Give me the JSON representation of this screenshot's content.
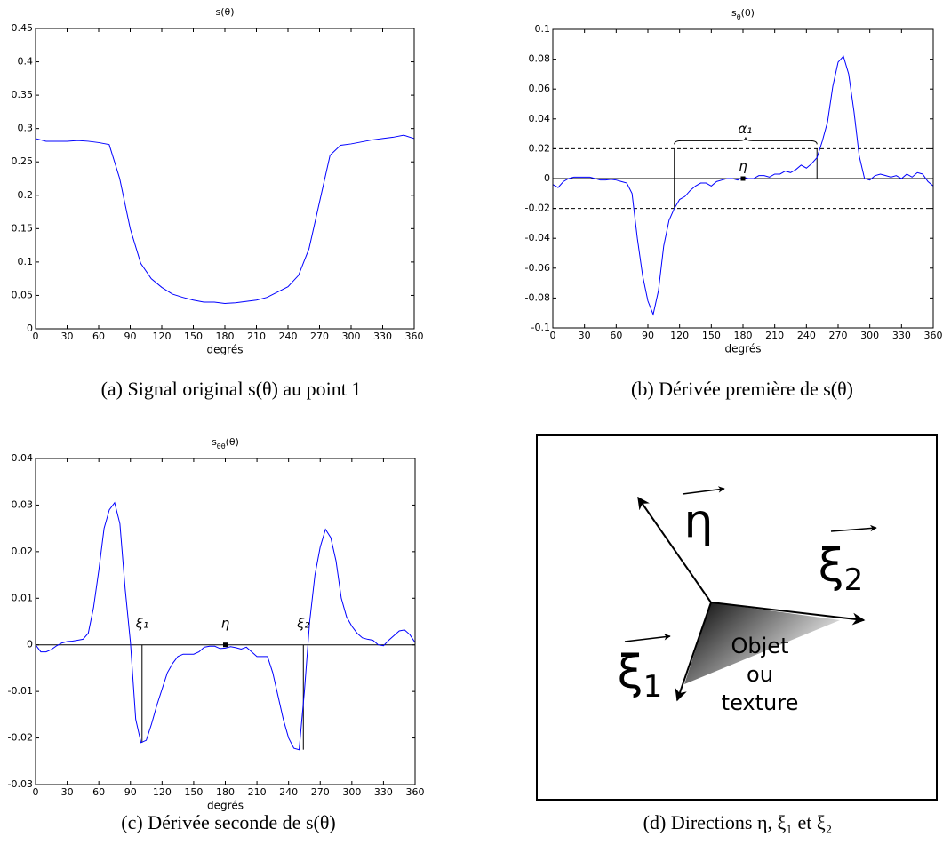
{
  "chart_data": [
    {
      "type": "line",
      "title": "s(θ)",
      "xlabel": "degrés",
      "caption": "(a) Signal original s(θ) au point 1",
      "color": "#0000ff",
      "x": [
        0,
        10,
        20,
        30,
        40,
        50,
        60,
        70,
        80,
        90,
        100,
        110,
        120,
        130,
        140,
        150,
        160,
        170,
        180,
        190,
        200,
        210,
        220,
        230,
        240,
        250,
        260,
        270,
        280,
        290,
        300,
        310,
        320,
        330,
        340,
        350,
        360
      ],
      "values": [
        0.285,
        0.281,
        0.281,
        0.281,
        0.282,
        0.281,
        0.279,
        0.276,
        0.225,
        0.15,
        0.098,
        0.075,
        0.062,
        0.052,
        0.047,
        0.043,
        0.04,
        0.04,
        0.038,
        0.039,
        0.041,
        0.043,
        0.047,
        0.055,
        0.063,
        0.08,
        0.12,
        0.19,
        0.26,
        0.275,
        0.277,
        0.28,
        0.283,
        0.285,
        0.287,
        0.29,
        0.285
      ],
      "xlim": [
        0,
        360
      ],
      "xticks": [
        0,
        30,
        60,
        90,
        120,
        150,
        180,
        210,
        240,
        270,
        300,
        330,
        360
      ],
      "ylim": [
        0,
        0.45
      ],
      "yticks": [
        0,
        0.05,
        0.1,
        0.15,
        0.2,
        0.25,
        0.3,
        0.35,
        0.4,
        0.45
      ]
    },
    {
      "type": "line",
      "title": [
        "s",
        "θ",
        "(θ)"
      ],
      "xlabel": "degrés",
      "caption": "(b) Dérivée première de s(θ)",
      "color": "#0000ff",
      "x": [
        0,
        5,
        10,
        15,
        20,
        25,
        30,
        35,
        40,
        45,
        50,
        55,
        60,
        65,
        70,
        75,
        80,
        85,
        90,
        95,
        100,
        105,
        110,
        115,
        120,
        125,
        130,
        135,
        140,
        145,
        150,
        155,
        160,
        165,
        170,
        175,
        180,
        185,
        190,
        195,
        200,
        205,
        210,
        215,
        220,
        225,
        230,
        235,
        240,
        245,
        250,
        255,
        260,
        265,
        270,
        275,
        280,
        285,
        290,
        295,
        300,
        305,
        310,
        315,
        320,
        325,
        330,
        335,
        340,
        345,
        350,
        355,
        360
      ],
      "values": [
        -0.004,
        -0.006,
        -0.002,
        0,
        0.001,
        0.001,
        0.001,
        0.001,
        0,
        -0.001,
        -0.001,
        -0.0005,
        -0.001,
        -0.002,
        -0.003,
        -0.01,
        -0.04,
        -0.065,
        -0.082,
        -0.091,
        -0.075,
        -0.045,
        -0.028,
        -0.02,
        -0.014,
        -0.012,
        -0.008,
        -0.005,
        -0.003,
        -0.003,
        -0.005,
        -0.002,
        -0.001,
        0,
        0,
        -0.001,
        0.001,
        0,
        0,
        0.002,
        0.002,
        0.001,
        0.003,
        0.003,
        0.005,
        0.004,
        0.006,
        0.009,
        0.007,
        0.01,
        0.014,
        0.025,
        0.038,
        0.062,
        0.078,
        0.082,
        0.07,
        0.045,
        0.015,
        0,
        -0.001,
        0.002,
        0.003,
        0.002,
        0.001,
        0.002,
        0,
        0.003,
        0.001,
        0.004,
        0.003,
        -0.002,
        -0.005
      ],
      "xlim": [
        0,
        360
      ],
      "xticks": [
        0,
        30,
        60,
        90,
        120,
        150,
        180,
        210,
        240,
        270,
        300,
        330,
        360
      ],
      "ylim": [
        -0.1,
        0.1
      ],
      "yticks": [
        -0.1,
        -0.08,
        -0.06,
        -0.04,
        -0.02,
        0,
        0.02,
        0.04,
        0.06,
        0.08,
        0.1
      ],
      "lines": [
        {
          "x": [
            0,
            360
          ],
          "y": [
            0.02,
            0.02
          ],
          "dashed": true
        },
        {
          "x": [
            0,
            360
          ],
          "y": [
            -0.02,
            -0.02
          ],
          "dashed": true
        },
        {
          "x": [
            0,
            360
          ],
          "y": [
            0,
            0
          ]
        },
        {
          "x": [
            115,
            115
          ],
          "y": [
            -0.02,
            0.02
          ]
        },
        {
          "x": [
            250,
            250
          ],
          "y": [
            0,
            0.02
          ]
        }
      ],
      "brace": {
        "x": [
          115,
          250
        ],
        "y": 0.023
      },
      "markers": [
        {
          "x": 180,
          "y": 0
        }
      ],
      "annotations": [
        {
          "text": "α₁",
          "x": 182,
          "y": 0.033
        },
        {
          "text": "η",
          "x": 180,
          "y": 0.008
        }
      ]
    },
    {
      "type": "line",
      "title": [
        "s",
        "θθ",
        "(θ)"
      ],
      "xlabel": "degrés",
      "caption": "(c) Dérivée seconde de s(θ)",
      "color": "#0000ff",
      "x": [
        0,
        5,
        10,
        15,
        20,
        25,
        30,
        35,
        40,
        45,
        50,
        55,
        60,
        65,
        70,
        75,
        80,
        85,
        90,
        95,
        100,
        105,
        110,
        115,
        120,
        125,
        130,
        135,
        140,
        145,
        150,
        155,
        160,
        165,
        170,
        175,
        180,
        185,
        190,
        195,
        200,
        205,
        210,
        215,
        220,
        225,
        230,
        235,
        240,
        245,
        250,
        255,
        260,
        265,
        270,
        275,
        280,
        285,
        290,
        295,
        300,
        305,
        310,
        315,
        320,
        325,
        330,
        335,
        340,
        345,
        350,
        355,
        360
      ],
      "values": [
        0,
        -0.0015,
        -0.0015,
        -0.001,
        -0.0002,
        0.0004,
        0.0007,
        0.0008,
        0.001,
        0.0012,
        0.0025,
        0.008,
        0.016,
        0.025,
        0.029,
        0.0305,
        0.026,
        0.012,
        0.0005,
        -0.016,
        -0.021,
        -0.0205,
        -0.017,
        -0.013,
        -0.0095,
        -0.006,
        -0.004,
        -0.0025,
        -0.002,
        -0.002,
        -0.002,
        -0.0015,
        -0.0005,
        -0.0003,
        -0.0003,
        -0.0008,
        -0.0007,
        -0.0004,
        -0.0006,
        -0.0009,
        -0.0005,
        -0.0015,
        -0.0025,
        -0.0025,
        -0.0025,
        -0.006,
        -0.011,
        -0.016,
        -0.02,
        -0.0222,
        -0.0225,
        -0.01,
        0.005,
        0.015,
        0.021,
        0.0248,
        0.023,
        0.018,
        0.01,
        0.006,
        0.004,
        0.0025,
        0.0015,
        0.0012,
        0.001,
        0,
        -0.0002,
        0.001,
        0.002,
        0.003,
        0.0032,
        0.0022,
        0.0005
      ],
      "xlim": [
        0,
        360
      ],
      "xticks": [
        0,
        30,
        60,
        90,
        120,
        150,
        180,
        210,
        240,
        270,
        300,
        330,
        360
      ],
      "ylim": [
        -0.03,
        0.04
      ],
      "yticks": [
        -0.03,
        -0.02,
        -0.01,
        0,
        0.01,
        0.02,
        0.03,
        0.04
      ],
      "lines": [
        {
          "x": [
            0,
            360
          ],
          "y": [
            0,
            0
          ]
        },
        {
          "x": [
            101,
            101
          ],
          "y": [
            0,
            -0.021
          ]
        },
        {
          "x": [
            254,
            254
          ],
          "y": [
            0,
            -0.0225
          ]
        }
      ],
      "markers": [
        {
          "x": 180,
          "y": 0
        }
      ],
      "annotations": [
        {
          "text": "ξ₁",
          "x": 101,
          "y": 0.0045
        },
        {
          "text": "η",
          "x": 180,
          "y": 0.0045
        },
        {
          "text": "ξ₂",
          "x": 254,
          "y": 0.0045
        }
      ]
    }
  ],
  "diagram": {
    "caption": "(d) Directions η, ξ₁ et ξ₂",
    "labels": [
      {
        "symbol": "η"
      },
      {
        "symbol": "ξ",
        "sub": "2"
      },
      {
        "symbol": "ξ",
        "sub": "1"
      }
    ],
    "object": [
      "Objet",
      "ou",
      "texture"
    ]
  }
}
